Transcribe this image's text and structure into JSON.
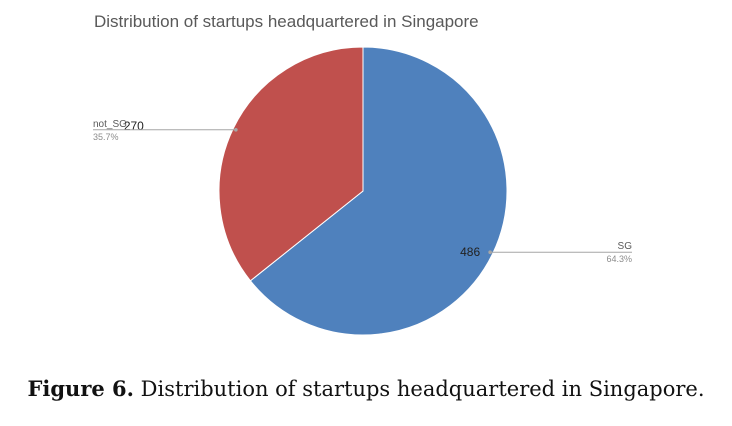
{
  "chart_data": {
    "type": "pie",
    "title": "Distribution of startups headquartered in Singapore",
    "slices": [
      {
        "label": "SG",
        "value": 486,
        "percent": "64.3%",
        "color": "#4f81bd"
      },
      {
        "label": "not_SG",
        "value": 270,
        "percent": "35.7%",
        "color": "#c0504d"
      }
    ],
    "label_color": "#595959",
    "percent_color": "#8c8c8c",
    "leader_color": "#a6a6a6"
  },
  "caption": {
    "label": "Figure 6.",
    "text": "Distribution of startups headquartered in Singapore."
  }
}
